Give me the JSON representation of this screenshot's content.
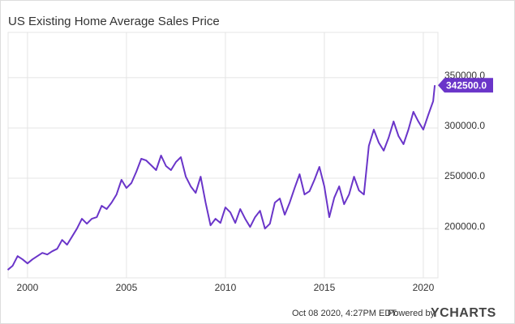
{
  "chart_data": {
    "type": "line",
    "title": "US Existing Home Average Sales Price",
    "x": [
      1999.0,
      1999.25,
      1999.5,
      1999.75,
      2000.0,
      2000.25,
      2000.5,
      2000.75,
      2001.0,
      2001.25,
      2001.5,
      2001.75,
      2002.0,
      2002.25,
      2002.5,
      2002.75,
      2003.0,
      2003.25,
      2003.5,
      2003.75,
      2004.0,
      2004.25,
      2004.5,
      2004.75,
      2005.0,
      2005.25,
      2005.5,
      2005.75,
      2006.0,
      2006.25,
      2006.5,
      2006.75,
      2007.0,
      2007.25,
      2007.5,
      2007.75,
      2008.0,
      2008.25,
      2008.5,
      2008.75,
      2009.0,
      2009.25,
      2009.5,
      2009.75,
      2010.0,
      2010.25,
      2010.5,
      2010.75,
      2011.0,
      2011.25,
      2011.5,
      2011.75,
      2012.0,
      2012.25,
      2012.5,
      2012.75,
      2013.0,
      2013.25,
      2013.5,
      2013.75,
      2014.0,
      2014.25,
      2014.5,
      2014.75,
      2015.0,
      2015.25,
      2015.5,
      2015.75,
      2016.0,
      2016.25,
      2016.5,
      2016.75,
      2017.0,
      2017.25,
      2017.5,
      2017.75,
      2018.0,
      2018.25,
      2018.5,
      2018.75,
      2019.0,
      2019.25,
      2019.5,
      2019.75,
      2020.0,
      2020.25,
      2020.5,
      2020.58
    ],
    "series": [
      {
        "name": "US Existing Home Average Sales Price",
        "color": "#6a35c9",
        "values": [
          158900,
          163000,
          172600,
          169400,
          165300,
          169400,
          172600,
          175800,
          174200,
          177400,
          179800,
          188700,
          183900,
          191900,
          200000,
          209700,
          204800,
          209700,
          211300,
          222600,
          219400,
          225800,
          233900,
          248400,
          240300,
          245200,
          256500,
          269400,
          267700,
          262900,
          258100,
          272600,
          262100,
          258100,
          266100,
          271000,
          251600,
          241900,
          235500,
          251600,
          225800,
          203200,
          209700,
          205600,
          221000,
          216100,
          205600,
          219400,
          209700,
          201600,
          211300,
          217700,
          200000,
          204800,
          225800,
          229800,
          213700,
          225800,
          240300,
          254000,
          233900,
          237100,
          248400,
          261300,
          241900,
          211300,
          230600,
          241900,
          224200,
          233900,
          251600,
          237900,
          233900,
          282300,
          298400,
          285500,
          277400,
          290300,
          306500,
          291900,
          283900,
          298400,
          316100,
          306500,
          298400,
          312900,
          326600,
          342500
        ],
        "last_value_label": "342500.0"
      }
    ],
    "xlim": [
      1999.02,
      2020.74
    ],
    "xticks": [
      2000,
      2005,
      2010,
      2015,
      2020
    ],
    "ylim": [
      151000,
      395000
    ],
    "yticks": [
      {
        "value": 200000,
        "label": "200000.0"
      },
      {
        "value": 250000,
        "label": "250000.0"
      },
      {
        "value": 300000,
        "label": "300000.0"
      },
      {
        "value": 350000,
        "label": "350000.0"
      }
    ],
    "grid": true,
    "footer": {
      "timestamp": "Oct 08 2020, 4:27PM EDT.",
      "powered": "Powered by",
      "brand": "YCHARTS"
    }
  }
}
